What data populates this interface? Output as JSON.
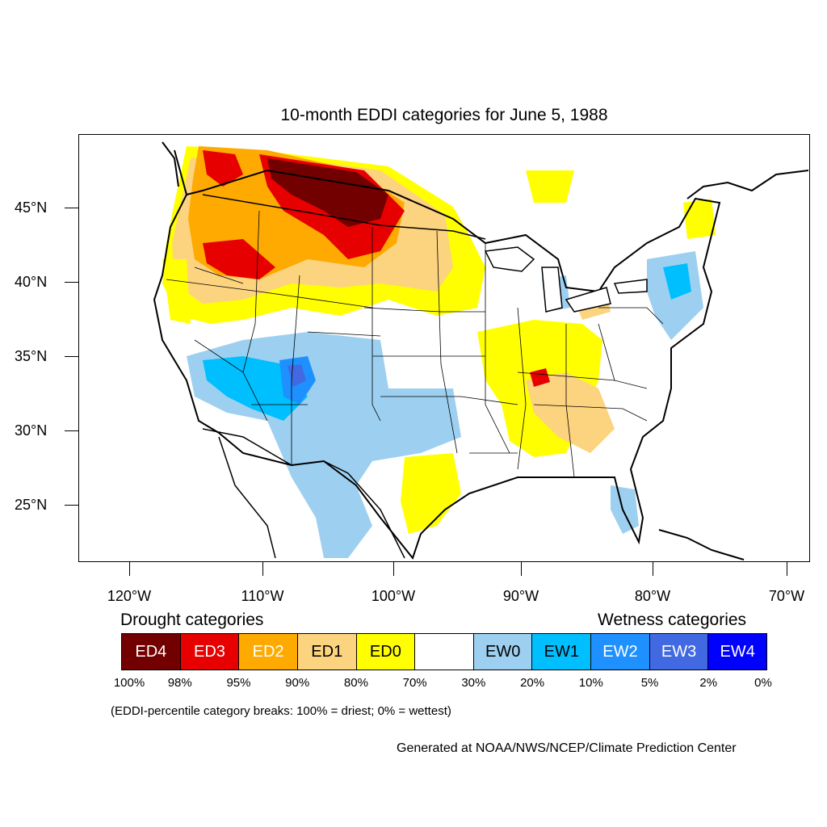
{
  "title": "10-month EDDI categories for June 5, 1988",
  "lat_labels": [
    "45°N",
    "40°N",
    "35°N",
    "30°N",
    "25°N"
  ],
  "lon_labels": [
    "120°W",
    "110°W",
    "100°W",
    "90°W",
    "80°W",
    "70°W"
  ],
  "legend": {
    "drought_title": "Drought categories",
    "wetness_title": "Wetness categories",
    "categories": [
      {
        "label": "ED4",
        "color": "#730000",
        "text_color": "#ffffff"
      },
      {
        "label": "ED3",
        "color": "#e60000",
        "text_color": "#ffffff"
      },
      {
        "label": "ED2",
        "color": "#ffaa00",
        "text_color": "#ffffff"
      },
      {
        "label": "ED1",
        "color": "#fcd37f",
        "text_color": "#000000"
      },
      {
        "label": "ED0",
        "color": "#ffff00",
        "text_color": "#000000"
      },
      {
        "label": "",
        "color": "#ffffff",
        "text_color": "#000000"
      },
      {
        "label": "EW0",
        "color": "#9dd0f0",
        "text_color": "#000000"
      },
      {
        "label": "EW1",
        "color": "#00bfff",
        "text_color": "#000000"
      },
      {
        "label": "EW2",
        "color": "#1e90ff",
        "text_color": "#ffffff"
      },
      {
        "label": "EW3",
        "color": "#4169e1",
        "text_color": "#ffffff"
      },
      {
        "label": "EW4",
        "color": "#0000ff",
        "text_color": "#ffffff"
      }
    ],
    "breaks": [
      "100%",
      "98%",
      "95%",
      "90%",
      "80%",
      "70%",
      "30%",
      "20%",
      "10%",
      "5%",
      "2%",
      "0%"
    ]
  },
  "note": "(EDDI-percentile category breaks: 100% = driest; 0% = wettest)",
  "credit": "Generated at NOAA/NWS/NCEP/Climate Prediction Center"
}
